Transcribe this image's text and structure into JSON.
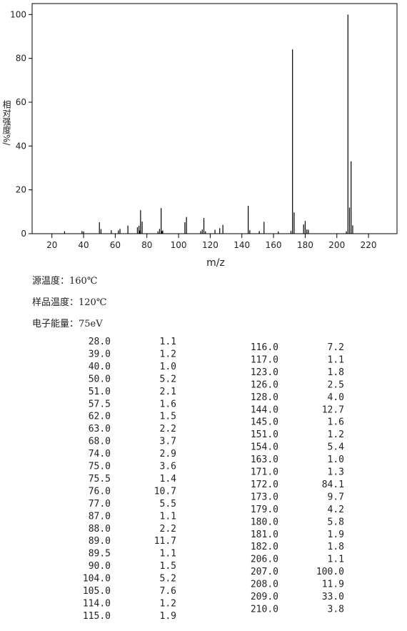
{
  "chart_data": {
    "type": "stick",
    "x_label": "m/z",
    "y_label": "相对强度%/",
    "x": [
      28,
      39,
      40,
      50,
      51,
      57.5,
      62,
      63,
      68,
      74,
      75,
      75.5,
      76,
      77,
      87,
      88,
      89,
      89.5,
      90,
      104,
      105,
      114,
      115,
      116,
      117,
      123,
      126,
      128,
      144,
      145,
      151,
      154,
      163,
      171,
      172,
      173,
      179,
      180,
      181,
      182,
      206,
      207,
      208,
      209,
      210
    ],
    "values": [
      1.1,
      1.2,
      1.0,
      5.2,
      2.1,
      1.6,
      1.5,
      2.2,
      3.7,
      2.9,
      3.6,
      1.4,
      10.7,
      5.5,
      1.1,
      2.2,
      11.7,
      1.1,
      1.5,
      5.2,
      7.6,
      1.2,
      1.9,
      7.2,
      1.1,
      1.8,
      2.5,
      4.0,
      12.7,
      1.6,
      1.2,
      5.4,
      1.0,
      1.3,
      84.1,
      9.7,
      4.2,
      5.8,
      1.9,
      1.8,
      1.1,
      100.0,
      11.9,
      33.0,
      3.8
    ],
    "color": "#000000",
    "xlim": [
      7.5,
      238
    ],
    "xticks": [
      20,
      40,
      60,
      80,
      100,
      120,
      140,
      160,
      180,
      200,
      220
    ],
    "ylim": [
      0,
      105
    ],
    "yticks": [
      0,
      20,
      40,
      60,
      80,
      100
    ]
  },
  "conditions": [
    "源温度：160℃",
    "样品温度：120℃",
    "电子能量：75eV"
  ],
  "peak_table": {
    "columns": [
      [
        [
          "28.0",
          "1.1"
        ],
        [
          "39.0",
          "1.2"
        ],
        [
          "40.0",
          "1.0"
        ],
        [
          "50.0",
          "5.2"
        ],
        [
          "51.0",
          "2.1"
        ],
        [
          "57.5",
          "1.6"
        ],
        [
          "62.0",
          "1.5"
        ],
        [
          "63.0",
          "2.2"
        ],
        [
          "68.0",
          "3.7"
        ],
        [
          "74.0",
          "2.9"
        ],
        [
          "75.0",
          "3.6"
        ],
        [
          "75.5",
          "1.4"
        ],
        [
          "76.0",
          "10.7"
        ],
        [
          "77.0",
          "5.5"
        ],
        [
          "87.0",
          "1.1"
        ],
        [
          "88.0",
          "2.2"
        ],
        [
          "89.0",
          "11.7"
        ],
        [
          "89.5",
          "1.1"
        ],
        [
          "90.0",
          "1.5"
        ],
        [
          "104.0",
          "5.2"
        ],
        [
          "105.0",
          "7.6"
        ],
        [
          "114.0",
          "1.2"
        ],
        [
          "115.0",
          "1.9"
        ]
      ],
      [
        [
          "116.0",
          "7.2"
        ],
        [
          "117.0",
          "1.1"
        ],
        [
          "123.0",
          "1.8"
        ],
        [
          "126.0",
          "2.5"
        ],
        [
          "128.0",
          "4.0"
        ],
        [
          "144.0",
          "12.7"
        ],
        [
          "145.0",
          "1.6"
        ],
        [
          "151.0",
          "1.2"
        ],
        [
          "154.0",
          "5.4"
        ],
        [
          "163.0",
          "1.0"
        ],
        [
          "171.0",
          "1.3"
        ],
        [
          "172.0",
          "84.1"
        ],
        [
          "173.0",
          "9.7"
        ],
        [
          "179.0",
          "4.2"
        ],
        [
          "180.0",
          "5.8"
        ],
        [
          "181.0",
          "1.9"
        ],
        [
          "182.0",
          "1.8"
        ],
        [
          "206.0",
          "1.1"
        ],
        [
          "207.0",
          "100.0"
        ],
        [
          "208.0",
          "11.9"
        ],
        [
          "209.0",
          "33.0"
        ],
        [
          "210.0",
          "3.8"
        ]
      ]
    ]
  }
}
